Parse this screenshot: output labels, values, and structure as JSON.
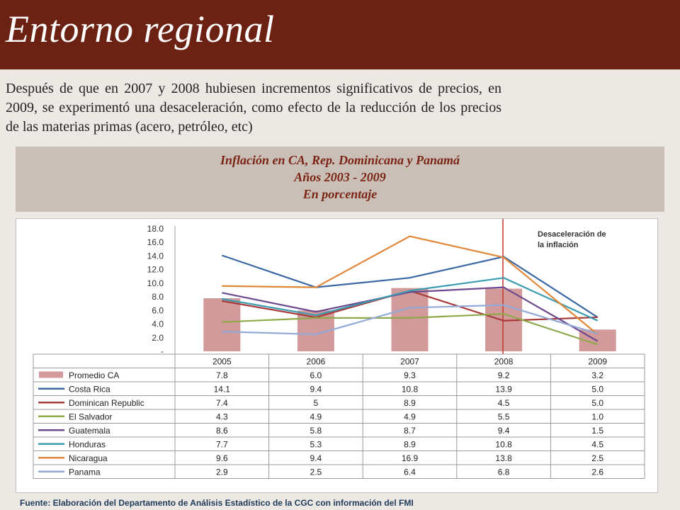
{
  "header": {
    "title": "Entorno regional"
  },
  "intro_text": "Después de que en 2007 y 2008 hubiesen incrementos significativos de precios, en 2009, se experimentó una desaceleración, como efecto de la reducción de los precios de las materias primas (acero, petróleo, etc)",
  "chart_title": {
    "line1": "Inflación en CA, Rep. Dominicana y Panamá",
    "line2": "Años 2003 - 2009",
    "line3": "En porcentaje"
  },
  "footer": "Fuente:  Elaboración del Departamento de Análisis Estadístico de la CGC con información del FMI",
  "chart_data": {
    "type": "bar",
    "categories": [
      "2005",
      "2006",
      "2007",
      "2008",
      "2009"
    ],
    "ylim": [
      0,
      18
    ],
    "yticks": [
      "18.0",
      "16.0",
      "14.0",
      "12.0",
      "10.0",
      "8.0",
      "6.0",
      "4.0",
      "2.0",
      "-"
    ],
    "annotation": "Desaceleración de la inflación",
    "series": [
      {
        "name": "Promedio CA",
        "kind": "bar",
        "color": "#d29a9a",
        "values": [
          7.8,
          6.0,
          9.3,
          9.2,
          3.2
        ],
        "labels": [
          "7.8",
          "6.0",
          "9.3",
          "9.2",
          "3.2"
        ]
      },
      {
        "name": "Costa Rica",
        "kind": "line",
        "color": "#3b67a5",
        "values": [
          14.1,
          9.4,
          10.8,
          13.9,
          5.0
        ],
        "labels": [
          "14.1",
          "9.4",
          "10.8",
          "13.9",
          "5.0"
        ]
      },
      {
        "name": "Dominican Republic",
        "kind": "line",
        "color": "#a83a3a",
        "values": [
          7.4,
          5,
          8.9,
          4.5,
          5.0
        ],
        "labels": [
          "7.4",
          "5",
          "8.9",
          "4.5",
          "5.0"
        ]
      },
      {
        "name": "El Salvador",
        "kind": "line",
        "color": "#8fa84a",
        "values": [
          4.3,
          4.9,
          4.9,
          5.5,
          1.0
        ],
        "labels": [
          "4.3",
          "4.9",
          "4.9",
          "5.5",
          "1.0"
        ]
      },
      {
        "name": "Guatemala",
        "kind": "line",
        "color": "#6d4a8e",
        "values": [
          8.6,
          5.8,
          8.7,
          9.4,
          1.5
        ],
        "labels": [
          "8.6",
          "5.8",
          "8.7",
          "9.4",
          "1.5"
        ]
      },
      {
        "name": "Honduras",
        "kind": "line",
        "color": "#3a9bb0",
        "values": [
          7.7,
          5.3,
          8.9,
          10.8,
          4.5
        ],
        "labels": [
          "7.7",
          "5.3",
          "8.9",
          "10.8",
          "4.5"
        ]
      },
      {
        "name": "Nicaragua",
        "kind": "line",
        "color": "#e0873a",
        "values": [
          9.6,
          9.4,
          16.9,
          13.8,
          2.5
        ],
        "labels": [
          "9.6",
          "9.4",
          "16.9",
          "13.8",
          "2.5"
        ]
      },
      {
        "name": "Panama",
        "kind": "line",
        "color": "#93a9d6",
        "values": [
          2.9,
          2.5,
          6.4,
          6.8,
          2.6
        ],
        "labels": [
          "2.9",
          "2.5",
          "6.4",
          "6.8",
          "2.6"
        ]
      }
    ]
  }
}
